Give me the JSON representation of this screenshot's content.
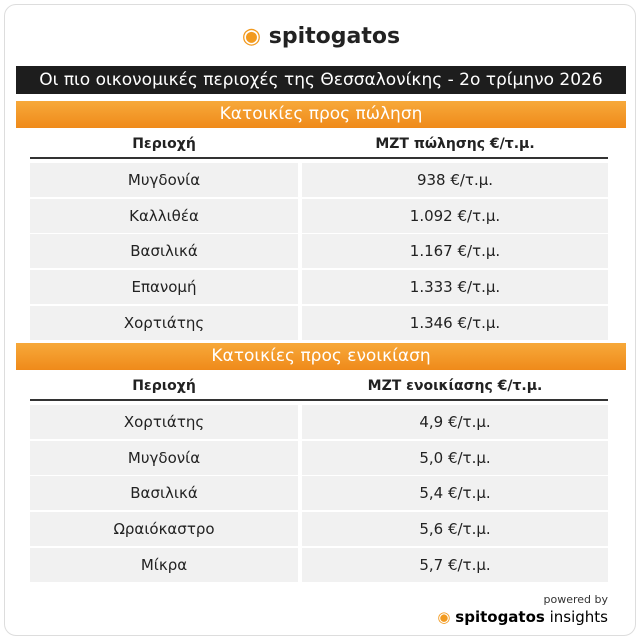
{
  "header": {
    "logo": "spitogatos",
    "title": "Οι πιο οικονομικές περιοχές της Θεσσαλονίκης - 2ο τρίμηνο 2026"
  },
  "sections": [
    {
      "title": "Κατοικίες προς πώληση",
      "columns": [
        "Περιοχή",
        "ΜΖΤ πώλησης €/τ.μ."
      ],
      "rows": [
        [
          "Μυγδονία",
          "938 €/τ.μ."
        ],
        [
          "Καλλιθέα",
          "1.092 €/τ.μ."
        ],
        [
          "Βασιλικά",
          "1.167 €/τ.μ."
        ],
        [
          "Επανομή",
          "1.333 €/τ.μ."
        ],
        [
          "Χορτιάτης",
          "1.346 €/τ.μ."
        ]
      ]
    },
    {
      "title": "Κατοικίες προς ενοικίαση",
      "columns": [
        "Περιοχή",
        "ΜΖΤ ενοικίασης €/τ.μ."
      ],
      "rows": [
        [
          "Χορτιάτης",
          "4,9 €/τ.μ."
        ],
        [
          "Μυγδονία",
          "5,0 €/τ.μ."
        ],
        [
          "Βασιλικά",
          "5,4 €/τ.μ."
        ],
        [
          "Ωραιόκαστρο",
          "5,6 €/τ.μ."
        ],
        [
          "Μίκρα",
          "5,7 €/τ.μ."
        ]
      ]
    }
  ],
  "footer": {
    "powered_by": "powered by",
    "brand": "spitogatos",
    "suffix": "insights"
  }
}
